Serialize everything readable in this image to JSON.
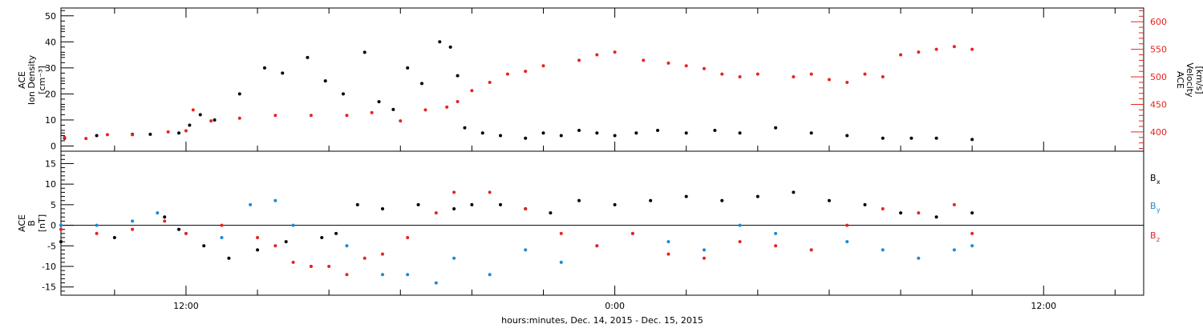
{
  "colors": {
    "black": "#000000",
    "red": "#e8231f",
    "blue": "#1a8ad4"
  },
  "xaxis": {
    "label": "hours:minutes, Dec. 14, 2015 - Dec. 15, 2015",
    "range_hours": [
      -15.5,
      14.8
    ],
    "major_ticks": [
      {
        "hour": -12,
        "label": "12:00"
      },
      {
        "hour": 0,
        "label": "0:00"
      },
      {
        "hour": 12,
        "label": "12:00"
      }
    ],
    "minor_tick_step_hours": 2
  },
  "panel_top": {
    "left_axis": {
      "label_lines": [
        "ACE",
        "Ion Density",
        "[cm⁻³]"
      ],
      "range": [
        -2,
        53
      ],
      "ticks": [
        0,
        10,
        20,
        30,
        40,
        50
      ]
    },
    "right_axis": {
      "label_lines": [
        "ACE",
        "Velocity",
        "[km/s]"
      ],
      "range": [
        365,
        625
      ],
      "ticks": [
        400,
        450,
        500,
        550,
        600
      ]
    }
  },
  "panel_bottom": {
    "axis": {
      "label_lines": [
        "ACE",
        "B",
        "[nT]"
      ],
      "range": [
        -17,
        18
      ],
      "ticks": [
        -15,
        -10,
        -5,
        0,
        5,
        10,
        15
      ]
    },
    "legend": [
      {
        "label": "B",
        "sub": "x",
        "color": "#000000"
      },
      {
        "label": "B",
        "sub": "y",
        "color": "#1a8ad4"
      },
      {
        "label": "B",
        "sub": "z",
        "color": "#e8231f"
      }
    ]
  },
  "chart_data": [
    {
      "type": "scatter",
      "title": "",
      "xlabel": "hours:minutes, Dec. 14, 2015 - Dec. 15, 2015",
      "ylabel": "ACE Ion Density [cm⁻³]",
      "y2label": "ACE Velocity [km/s]",
      "x_units": "hours relative to 0:00 Dec. 15, 2015",
      "ylim": [
        -2,
        53
      ],
      "y2lim": [
        365,
        625
      ],
      "series": [
        {
          "name": "Ion Density",
          "axis": "left",
          "color": "#000000",
          "x": [
            -15.4,
            -14.5,
            -13.5,
            -13.0,
            -12.2,
            -11.9,
            -11.6,
            -11.2,
            -10.5,
            -9.8,
            -9.3,
            -8.6,
            -8.1,
            -7.6,
            -7.0,
            -6.6,
            -6.2,
            -5.8,
            -5.4,
            -4.9,
            -4.6,
            -4.4,
            -4.2,
            -3.7,
            -3.2,
            -2.5,
            -2.0,
            -1.5,
            -1.0,
            -0.5,
            0.0,
            0.6,
            1.2,
            2.0,
            2.8,
            3.5,
            4.5,
            5.5,
            6.5,
            7.5,
            8.3,
            9.0,
            10.0
          ],
          "y": [
            3,
            4,
            4.5,
            4.5,
            5,
            8,
            12,
            10,
            20,
            30,
            28,
            34,
            25,
            20,
            36,
            17,
            14,
            30,
            24,
            40,
            38,
            27,
            7,
            5,
            4,
            3,
            5,
            4,
            6,
            5,
            4,
            5,
            6,
            5,
            6,
            5,
            7,
            5,
            4,
            3,
            3,
            3,
            2.5
          ]
        },
        {
          "name": "Velocity",
          "axis": "right",
          "color": "#e8231f",
          "x": [
            -15.4,
            -14.8,
            -14.2,
            -13.5,
            -12.5,
            -12.0,
            -11.8,
            -11.3,
            -10.5,
            -9.5,
            -8.5,
            -7.5,
            -6.8,
            -6.0,
            -5.3,
            -4.7,
            -4.4,
            -4.0,
            -3.5,
            -3.0,
            -2.5,
            -2.0,
            -1.0,
            -0.5,
            0.0,
            0.8,
            1.5,
            2.0,
            2.5,
            3.0,
            3.5,
            4.0,
            5.0,
            5.5,
            6.0,
            6.5,
            7.0,
            7.5,
            8.0,
            8.5,
            9.0,
            9.5,
            10.0
          ],
          "y": [
            390,
            388,
            395,
            395,
            400,
            402,
            440,
            420,
            425,
            430,
            430,
            430,
            435,
            420,
            440,
            445,
            455,
            475,
            490,
            505,
            510,
            520,
            530,
            540,
            545,
            530,
            525,
            520,
            515,
            505,
            500,
            505,
            500,
            505,
            495,
            490,
            505,
            500,
            540,
            545,
            550,
            555,
            550
          ]
        }
      ]
    },
    {
      "type": "scatter",
      "title": "",
      "xlabel": "hours:minutes, Dec. 14, 2015 - Dec. 15, 2015",
      "ylabel": "ACE B [nT]",
      "x_units": "hours relative to 0:00 Dec. 15, 2015",
      "ylim": [
        -17,
        18
      ],
      "series": [
        {
          "name": "Bx",
          "color": "#000000",
          "x": [
            -15.5,
            -14.0,
            -12.6,
            -12.2,
            -11.5,
            -10.8,
            -10.0,
            -9.2,
            -8.2,
            -7.8,
            -7.2,
            -6.5,
            -5.5,
            -4.5,
            -4.0,
            -3.2,
            -2.5,
            -1.8,
            -1.0,
            0.0,
            1.0,
            2.0,
            3.0,
            4.0,
            5.0,
            6.0,
            7.0,
            8.0,
            9.0,
            10.0
          ],
          "y": [
            -4,
            -3,
            2,
            -1,
            -5,
            -8,
            -6,
            -4,
            -3,
            -2,
            5,
            4,
            5,
            4,
            5,
            5,
            4,
            3,
            6,
            5,
            6,
            7,
            6,
            7,
            8,
            6,
            5,
            3,
            2,
            3
          ]
        },
        {
          "name": "By",
          "color": "#1a8ad4",
          "x": [
            -15.5,
            -14.5,
            -13.5,
            -12.8,
            -12.0,
            -11.0,
            -10.2,
            -9.5,
            -9.0,
            -8.5,
            -7.5,
            -6.5,
            -5.8,
            -5.0,
            -4.5,
            -3.5,
            -2.5,
            -1.5,
            -0.5,
            0.5,
            1.5,
            2.5,
            3.5,
            4.5,
            5.5,
            6.5,
            7.5,
            8.5,
            9.5,
            10.0
          ],
          "y": [
            0,
            0,
            1,
            3,
            -2,
            -3,
            5,
            6,
            0,
            -10,
            -5,
            -12,
            -12,
            -14,
            -8,
            -12,
            -6,
            -9,
            -5,
            -2,
            -4,
            -6,
            0,
            -2,
            -6,
            -4,
            -6,
            -8,
            -6,
            -5
          ]
        },
        {
          "name": "Bz",
          "color": "#e8231f",
          "x": [
            -15.5,
            -14.5,
            -13.5,
            -12.6,
            -12.0,
            -11.0,
            -10.0,
            -9.5,
            -9.0,
            -8.5,
            -8.0,
            -7.5,
            -7.0,
            -6.5,
            -5.8,
            -5.0,
            -4.5,
            -3.5,
            -2.5,
            -1.5,
            -0.5,
            0.5,
            1.5,
            2.5,
            3.5,
            4.5,
            5.5,
            6.5,
            7.5,
            8.5,
            9.5,
            10.0
          ],
          "y": [
            -1,
            -2,
            -1,
            1,
            -2,
            0,
            -3,
            -5,
            -9,
            -10,
            -10,
            -12,
            -8,
            -7,
            -3,
            3,
            8,
            8,
            4,
            -2,
            -5,
            -2,
            -7,
            -8,
            -4,
            -5,
            -6,
            0,
            4,
            3,
            5,
            -2
          ]
        }
      ]
    }
  ]
}
